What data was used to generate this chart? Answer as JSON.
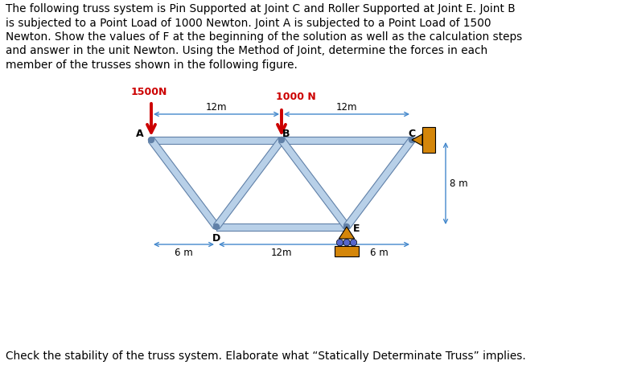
{
  "text_paragraph1": "The following truss system is Pin Supported at Joint C and Roller Supported at Joint E. Joint B",
  "text_paragraph2": "is subjected to a Point Load of 1000 Newton. Joint A is subjected to a Point Load of 1500",
  "text_paragraph3": "Newton. Show the values of F at the beginning of the solution as well as the calculation steps",
  "text_paragraph4": "and answer in the unit Newton. Using the Method of Joint, determine the forces in each",
  "text_paragraph5": "member of the trusses shown in the following figure.",
  "text_bottom": "Check the stability of the truss system. Elaborate what “Statically Determinate Truss” implies.",
  "label_1500N": "1500N",
  "label_1000N": "1000 N",
  "label_A": "A",
  "label_B": "B",
  "label_C": "C",
  "label_D": "D",
  "label_E": "E",
  "label_12m_AB": "12m",
  "label_12m_BC": "12m",
  "label_6m_left": "6 m",
  "label_12m_DE": "12m",
  "label_6m_right": "6 m",
  "label_8m": "8 m",
  "member_color": "#b8d0e8",
  "member_edge_color": "#6080a8",
  "pin_color": "#d4860a",
  "arrow_color": "#cc0000",
  "dim_arrow_color": "#4488cc",
  "background": "#ffffff",
  "member_lw": 9,
  "font_size_text": 9.8,
  "font_size_label": 9,
  "font_size_dim": 8.5
}
